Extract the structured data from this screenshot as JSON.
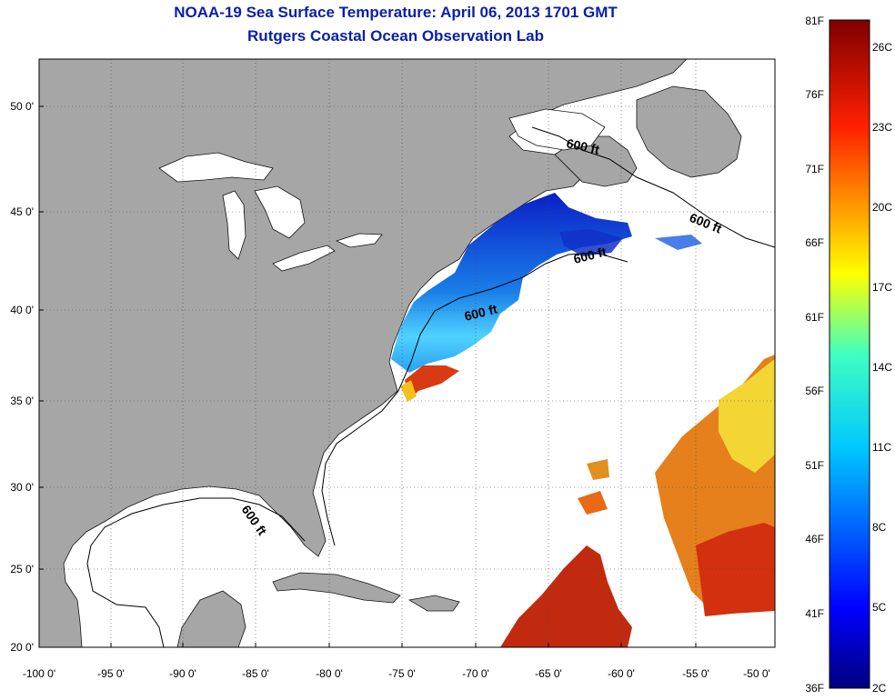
{
  "header": {
    "title": "NOAA-19 Sea Surface Temperature:  April 06, 2013 1701 GMT",
    "subtitle": "Rutgers Coastal Ocean Observation Lab"
  },
  "map": {
    "lon_ticks": [
      "-100 0'",
      "-95 0'",
      "-90 0'",
      "-85 0'",
      "-80 0'",
      "-75 0'",
      "-70 0'",
      "-65 0'",
      "-60 0'",
      "-55 0'",
      "-50 0'"
    ],
    "lat_ticks": [
      "50 0'",
      "45 0'",
      "40 0'",
      "35 0'",
      "30 0'",
      "25 0'",
      "20 0'"
    ],
    "contour_labels": [
      "600 ft",
      "600 ft",
      "600 ft",
      "600 ft",
      "600 ft"
    ],
    "colors": {
      "land": "#a6a6a6",
      "ocean_no_data": "#ffffff",
      "cold_water": "#0a2bd6",
      "warm_water": "#c0240e"
    }
  },
  "colorbar": {
    "fahrenheit_labels": [
      "81F",
      "76F",
      "71F",
      "66F",
      "61F",
      "56F",
      "51F",
      "46F",
      "41F",
      "36F"
    ],
    "celsius_labels": [
      "26C",
      "23C",
      "20C",
      "17C",
      "14C",
      "11C",
      "8C",
      "5C",
      "2C"
    ]
  }
}
